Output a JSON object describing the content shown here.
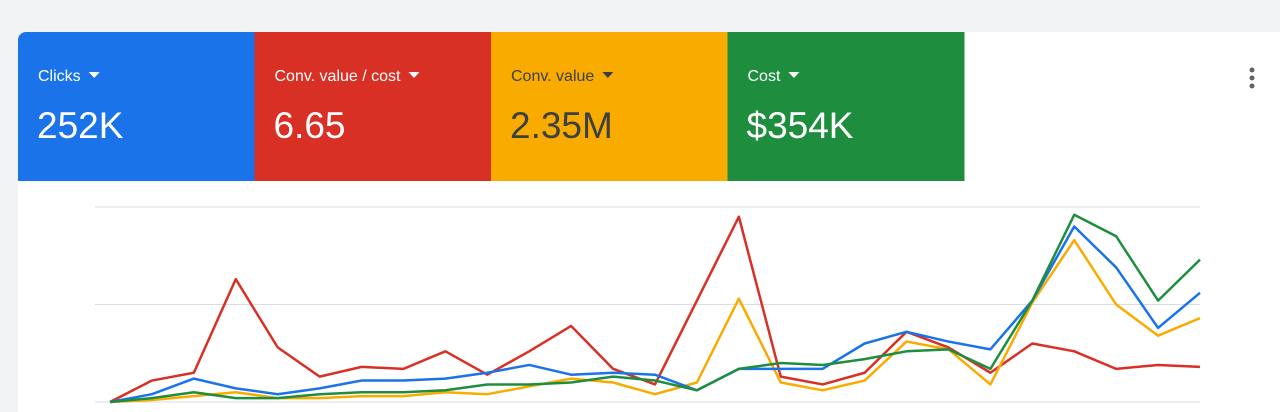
{
  "metrics": [
    {
      "label": "Clicks",
      "value": "252K",
      "color": "#1a73e8",
      "text": "#ffffff"
    },
    {
      "label": "Conv. value / cost",
      "value": "6.65",
      "color": "#d93025",
      "text": "#ffffff"
    },
    {
      "label": "Conv. value",
      "value": "2.35M",
      "color": "#f9ab00",
      "text": "#3c4043"
    },
    {
      "label": "Cost",
      "value": "$354K",
      "color": "#1e8e3e",
      "text": "#ffffff"
    }
  ],
  "chart_data": {
    "type": "line",
    "categories": [
      null,
      null,
      null,
      null,
      null,
      null,
      null,
      null,
      null,
      null,
      null,
      null,
      null,
      null,
      null,
      null,
      null,
      null,
      null,
      null,
      null,
      null,
      null,
      null,
      null,
      null,
      null
    ],
    "series": [
      {
        "color": "#d93025",
        "values": [
          0,
          11,
          15,
          63,
          28,
          13,
          18,
          17,
          26,
          14,
          26,
          39,
          17,
          9,
          52,
          95,
          13,
          9,
          15,
          36,
          28,
          15,
          30,
          26,
          17,
          19,
          18
        ]
      },
      {
        "color": "#f9ab00",
        "values": [
          0,
          1,
          3,
          5,
          2,
          2,
          3,
          3,
          5,
          4,
          8,
          12,
          10,
          4,
          10,
          53,
          10,
          6,
          11,
          31,
          27,
          9,
          51,
          83,
          50,
          34,
          43
        ]
      },
      {
        "color": "#1a73e8",
        "values": [
          0,
          4,
          12,
          7,
          4,
          7,
          11,
          11,
          12,
          15,
          19,
          14,
          15,
          14,
          6,
          17,
          17,
          17,
          30,
          36,
          31,
          27,
          52,
          90,
          69,
          38,
          56
        ]
      },
      {
        "color": "#1e8e3e",
        "values": [
          0,
          2,
          5,
          2,
          2,
          4,
          5,
          5,
          6,
          9,
          9,
          10,
          13,
          11,
          6,
          17,
          20,
          19,
          22,
          26,
          27,
          17,
          52,
          96,
          85,
          52,
          73
        ]
      }
    ],
    "ylim": [
      0,
      100
    ],
    "yticks": [
      0,
      50,
      100
    ],
    "grid": true
  }
}
